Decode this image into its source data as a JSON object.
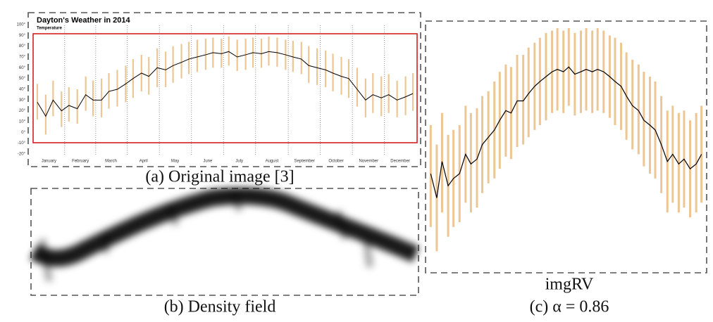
{
  "captions": [
    "(a) Original image [3]",
    "(b) Density field",
    "imgRV",
    "(c) α = 0.86"
  ],
  "chart_data": [
    {
      "type": "line",
      "title": "Dayton's Weather in 2014",
      "subtitle": "Temperature",
      "xlim": [
        0,
        365
      ],
      "xticks": [
        {
          "value": 15,
          "label": "January"
        },
        {
          "value": 45,
          "label": "February"
        },
        {
          "value": 74,
          "label": "March"
        },
        {
          "value": 105,
          "label": "April"
        },
        {
          "value": 135,
          "label": "May"
        },
        {
          "value": 166,
          "label": "June"
        },
        {
          "value": 196,
          "label": "July"
        },
        {
          "value": 227,
          "label": "August"
        },
        {
          "value": 258,
          "label": "September"
        },
        {
          "value": 288,
          "label": "October"
        },
        {
          "value": 319,
          "label": "November"
        },
        {
          "value": 349,
          "label": "December"
        }
      ],
      "ylim": [
        -20,
        100
      ],
      "yticks": [
        {
          "value": 100,
          "label": "100°"
        },
        {
          "value": 90,
          "label": "90°"
        },
        {
          "value": 80,
          "label": "80°"
        },
        {
          "value": 70,
          "label": "70°"
        },
        {
          "value": 60,
          "label": "60°"
        },
        {
          "value": 50,
          "label": "50°"
        },
        {
          "value": 40,
          "label": "40°"
        },
        {
          "value": 30,
          "label": "30°"
        },
        {
          "value": 20,
          "label": "20°"
        },
        {
          "value": 10,
          "label": "10°"
        },
        {
          "value": 0,
          "label": "0°"
        },
        {
          "value": -10,
          "label": "-10°"
        },
        {
          "value": -20,
          "label": "-20°"
        }
      ],
      "grid": false,
      "x": [
        4,
        12,
        19,
        27,
        34,
        42,
        50,
        57,
        65,
        72,
        80,
        88,
        95,
        103,
        110,
        118,
        126,
        133,
        141,
        148,
        156,
        164,
        171,
        179,
        186,
        194,
        202,
        209,
        217,
        224,
        232,
        240,
        247,
        255,
        262,
        270,
        278,
        285,
        293,
        300,
        308,
        316,
        323,
        331,
        338,
        346,
        354,
        361
      ],
      "series": [
        {
          "color": "#000000",
          "values": [
            28,
            15,
            30,
            20,
            25,
            22,
            35,
            30,
            30,
            38,
            40,
            45,
            50,
            55,
            52,
            60,
            58,
            62,
            65,
            68,
            70,
            72,
            74,
            73,
            75,
            70,
            72,
            74,
            73,
            75,
            74,
            72,
            70,
            68,
            62,
            60,
            58,
            55,
            52,
            50,
            40,
            30,
            35,
            32,
            35,
            30,
            33,
            36
          ]
        },
        {
          "color": "#e8b87a",
          "values": [
            45,
            35,
            48,
            38,
            42,
            40,
            52,
            48,
            50,
            55,
            58,
            62,
            68,
            72,
            70,
            78,
            75,
            80,
            82,
            84,
            86,
            87,
            88,
            87,
            89,
            86,
            87,
            88,
            87,
            89,
            88,
            86,
            85,
            84,
            80,
            78,
            76,
            73,
            70,
            68,
            60,
            50,
            55,
            52,
            54,
            48,
            52,
            55
          ]
        },
        {
          "color": "#e8b87a",
          "values": [
            12,
            -2,
            15,
            5,
            10,
            8,
            20,
            15,
            14,
            22,
            24,
            28,
            32,
            38,
            35,
            42,
            42,
            46,
            50,
            54,
            56,
            58,
            60,
            60,
            62,
            57,
            58,
            60,
            60,
            62,
            61,
            58,
            56,
            54,
            46,
            44,
            42,
            38,
            35,
            32,
            24,
            14,
            18,
            15,
            18,
            14,
            16,
            20
          ]
        }
      ]
    },
    {
      "type": "line",
      "xlim": [
        0,
        365
      ],
      "ylim": [
        -10,
        90
      ],
      "x": [
        4,
        12,
        19,
        27,
        34,
        42,
        50,
        57,
        65,
        72,
        80,
        88,
        95,
        103,
        110,
        118,
        126,
        133,
        141,
        148,
        156,
        164,
        171,
        179,
        186,
        194,
        202,
        209,
        217,
        224,
        232,
        240,
        247,
        255,
        262,
        270,
        278,
        285,
        293,
        300,
        308,
        316,
        323,
        331,
        338,
        346,
        354,
        361
      ],
      "series": [
        {
          "color": "#000000",
          "values": [
            30,
            20,
            35,
            25,
            28,
            30,
            38,
            34,
            36,
            42,
            45,
            48,
            52,
            56,
            55,
            60,
            60,
            63,
            66,
            68,
            70,
            72,
            73,
            72,
            74,
            71,
            72,
            73,
            72,
            73,
            72,
            70,
            68,
            66,
            62,
            58,
            56,
            52,
            50,
            48,
            42,
            35,
            38,
            34,
            36,
            32,
            34,
            38
          ]
        },
        {
          "color": "#e8b87a",
          "values": [
            50,
            42,
            55,
            46,
            48,
            50,
            58,
            55,
            57,
            62,
            64,
            68,
            72,
            75,
            74,
            79,
            79,
            82,
            84,
            86,
            88,
            89,
            90,
            89,
            90,
            88,
            89,
            90,
            89,
            90,
            89,
            87,
            86,
            84,
            80,
            77,
            75,
            72,
            70,
            68,
            62,
            56,
            58,
            55,
            56,
            52,
            55,
            58
          ]
        },
        {
          "color": "#e8b87a",
          "values": [
            8,
            -2,
            14,
            4,
            8,
            10,
            18,
            14,
            16,
            22,
            26,
            28,
            32,
            37,
            36,
            41,
            42,
            45,
            48,
            50,
            52,
            55,
            56,
            55,
            58,
            54,
            55,
            56,
            55,
            56,
            55,
            53,
            50,
            48,
            44,
            40,
            38,
            33,
            30,
            28,
            22,
            14,
            18,
            14,
            16,
            12,
            14,
            18
          ]
        }
      ]
    }
  ]
}
